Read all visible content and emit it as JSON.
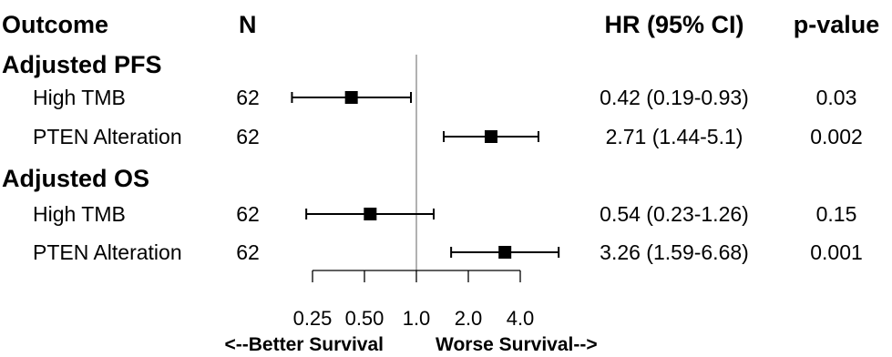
{
  "headers": {
    "outcome": "Outcome",
    "n": "N",
    "hr": "HR (95% CI)",
    "pvalue": "p-value"
  },
  "direction_label": {
    "left": "<--Better Survival",
    "right": "Worse Survival-->"
  },
  "colors": {
    "line": "#000000",
    "reference_line": "#888888",
    "marker": "#000000"
  },
  "chart_data": {
    "type": "forest",
    "x_scale": "log",
    "reference_value": 1.0,
    "xlim": [
      0.18,
      7.0
    ],
    "x_ticks": [
      {
        "value": 0.25,
        "label": "0.25"
      },
      {
        "value": 0.5,
        "label": "0.50"
      },
      {
        "value": 1.0,
        "label": "1.0"
      },
      {
        "value": 2.0,
        "label": "2.0"
      },
      {
        "value": 4.0,
        "label": "4.0"
      }
    ],
    "groups": [
      {
        "title": "Adjusted PFS",
        "rows": [
          {
            "label": "High TMB",
            "n": "62",
            "hr": 0.42,
            "lo": 0.19,
            "hi": 0.93,
            "hr_text": "0.42 (0.19-0.93)",
            "p": "0.03"
          },
          {
            "label": "PTEN Alteration",
            "n": "62",
            "hr": 2.71,
            "lo": 1.44,
            "hi": 5.1,
            "hr_text": "2.71 (1.44-5.1)",
            "p": "0.002"
          }
        ]
      },
      {
        "title": "Adjusted OS",
        "rows": [
          {
            "label": "High TMB",
            "n": "62",
            "hr": 0.54,
            "lo": 0.23,
            "hi": 1.26,
            "hr_text": "0.54 (0.23-1.26)",
            "p": "0.15"
          },
          {
            "label": "PTEN Alteration",
            "n": "62",
            "hr": 3.26,
            "lo": 1.59,
            "hi": 6.68,
            "hr_text": "3.26 (1.59-6.68)",
            "p": "0.001"
          }
        ]
      }
    ]
  }
}
